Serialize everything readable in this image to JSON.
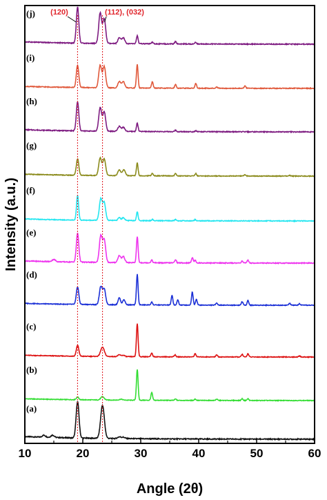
{
  "chart_data": {
    "type": "line",
    "xlabel": "Angle (2θ)",
    "ylabel": "Intensity (a.u.)",
    "xlim": [
      10,
      60
    ],
    "xticks": [
      10,
      20,
      30,
      40,
      50,
      60
    ],
    "y_tick_labels": "none",
    "reference_lines": [
      {
        "x": 19.1,
        "label": "(120)",
        "color": "#e0242b",
        "style": "dotted"
      },
      {
        "x": 23.4,
        "label": "(112), (032)",
        "color": "#e0242b",
        "style": "dotted"
      }
    ],
    "peak_positions": [
      19.1,
      23.4
    ],
    "series": [
      {
        "name": "(a)",
        "color": "#111111",
        "baseline": 0.0,
        "peaks": [
          [
            13.3,
            0.06,
            0.4
          ],
          [
            14.8,
            0.07,
            0.4
          ],
          [
            19.1,
            1.1,
            0.35
          ],
          [
            23.4,
            1.0,
            0.45
          ],
          [
            26.3,
            0.05,
            0.4
          ],
          [
            27.0,
            0.04,
            0.4
          ]
        ]
      },
      {
        "name": "(b)",
        "color": "#33dd33",
        "baseline": 0.0,
        "peaks": [
          [
            19.1,
            0.12,
            0.3
          ],
          [
            23.4,
            0.15,
            0.4
          ],
          [
            26.6,
            0.04,
            0.4
          ],
          [
            29.4,
            1.4,
            0.2
          ],
          [
            31.9,
            0.35,
            0.2
          ],
          [
            36.0,
            0.06,
            0.2
          ],
          [
            39.4,
            0.06,
            0.2
          ],
          [
            43.1,
            0.06,
            0.2
          ],
          [
            47.5,
            0.08,
            0.2
          ],
          [
            48.5,
            0.08,
            0.2
          ]
        ]
      },
      {
        "name": "(c)",
        "color": "#dd1111",
        "baseline": 0.0,
        "peaks": [
          [
            19.1,
            0.5,
            0.3
          ],
          [
            23.4,
            0.42,
            0.45
          ],
          [
            26.3,
            0.08,
            0.35
          ],
          [
            27.0,
            0.06,
            0.35
          ],
          [
            29.4,
            1.5,
            0.2
          ],
          [
            31.9,
            0.16,
            0.2
          ],
          [
            35.9,
            0.09,
            0.2
          ],
          [
            39.4,
            0.15,
            0.2
          ],
          [
            43.1,
            0.1,
            0.2
          ],
          [
            47.5,
            0.12,
            0.2
          ],
          [
            48.5,
            0.15,
            0.2
          ],
          [
            57.4,
            0.05,
            0.2
          ]
        ]
      },
      {
        "name": "(d)",
        "color": "#1a2fd6",
        "baseline": 0.0,
        "peaks": [
          [
            19.1,
            0.75,
            0.3
          ],
          [
            23.1,
            0.75,
            0.35
          ],
          [
            23.7,
            0.65,
            0.35
          ],
          [
            26.3,
            0.3,
            0.3
          ],
          [
            27.1,
            0.22,
            0.3
          ],
          [
            29.4,
            1.3,
            0.2
          ],
          [
            31.9,
            0.12,
            0.2
          ],
          [
            35.4,
            0.4,
            0.2
          ],
          [
            36.4,
            0.22,
            0.2
          ],
          [
            38.9,
            0.55,
            0.2
          ],
          [
            39.6,
            0.25,
            0.2
          ],
          [
            43.1,
            0.1,
            0.2
          ],
          [
            47.5,
            0.15,
            0.2
          ],
          [
            48.5,
            0.2,
            0.2
          ],
          [
            55.7,
            0.08,
            0.2
          ],
          [
            57.4,
            0.06,
            0.2
          ]
        ]
      },
      {
        "name": "(e)",
        "color": "#ee33ee",
        "baseline": 0.0,
        "peaks": [
          [
            15.0,
            0.08,
            0.4
          ],
          [
            19.1,
            1.05,
            0.3
          ],
          [
            23.1,
            0.95,
            0.35
          ],
          [
            23.7,
            0.8,
            0.35
          ],
          [
            26.3,
            0.25,
            0.35
          ],
          [
            27.0,
            0.22,
            0.35
          ],
          [
            29.4,
            0.95,
            0.2
          ],
          [
            31.9,
            0.1,
            0.2
          ],
          [
            36.0,
            0.12,
            0.2
          ],
          [
            38.9,
            0.2,
            0.2
          ],
          [
            39.4,
            0.1,
            0.2
          ],
          [
            47.5,
            0.08,
            0.2
          ],
          [
            48.5,
            0.1,
            0.2
          ]
        ]
      },
      {
        "name": "(f)",
        "color": "#22e6f0",
        "baseline": 0.0,
        "peaks": [
          [
            19.1,
            1.0,
            0.25
          ],
          [
            23.1,
            0.85,
            0.35
          ],
          [
            23.7,
            0.7,
            0.35
          ],
          [
            26.3,
            0.12,
            0.3
          ],
          [
            27.0,
            0.12,
            0.3
          ],
          [
            29.4,
            0.35,
            0.2
          ],
          [
            32.0,
            0.05,
            0.2
          ],
          [
            36.0,
            0.05,
            0.2
          ],
          [
            39.4,
            0.05,
            0.2
          ]
        ]
      },
      {
        "name": "(g)",
        "color": "#8a8a1a",
        "baseline": 0.0,
        "peaks": [
          [
            19.1,
            0.7,
            0.3
          ],
          [
            23.0,
            0.75,
            0.35
          ],
          [
            23.7,
            0.7,
            0.35
          ],
          [
            26.3,
            0.25,
            0.35
          ],
          [
            27.1,
            0.25,
            0.35
          ],
          [
            29.4,
            0.55,
            0.2
          ],
          [
            32.0,
            0.1,
            0.2
          ],
          [
            36.0,
            0.1,
            0.2
          ],
          [
            39.5,
            0.1,
            0.2
          ],
          [
            48.0,
            0.06,
            0.2
          ],
          [
            55.7,
            0.03,
            0.2
          ]
        ]
      },
      {
        "name": "(h)",
        "color": "#7d1a80",
        "baseline": 0.0,
        "peaks": [
          [
            19.1,
            1.05,
            0.3
          ],
          [
            23.0,
            0.85,
            0.35
          ],
          [
            23.7,
            0.7,
            0.35
          ],
          [
            26.3,
            0.18,
            0.35
          ],
          [
            27.0,
            0.15,
            0.35
          ],
          [
            29.4,
            0.3,
            0.2
          ],
          [
            36.0,
            0.05,
            0.2
          ],
          [
            39.5,
            0.04,
            0.2
          ]
        ]
      },
      {
        "name": "(i)",
        "color": "#e0583a",
        "baseline": 0.0,
        "peaks": [
          [
            19.1,
            0.9,
            0.3
          ],
          [
            23.0,
            0.9,
            0.35
          ],
          [
            23.7,
            0.85,
            0.35
          ],
          [
            26.3,
            0.25,
            0.35
          ],
          [
            27.0,
            0.25,
            0.35
          ],
          [
            29.4,
            0.95,
            0.2
          ],
          [
            32.0,
            0.25,
            0.2
          ],
          [
            36.0,
            0.15,
            0.2
          ],
          [
            39.5,
            0.2,
            0.2
          ],
          [
            43.1,
            0.05,
            0.2
          ],
          [
            48.0,
            0.1,
            0.2
          ]
        ]
      },
      {
        "name": "(j)",
        "color": "#7d1a80",
        "baseline": 0.0,
        "peaks": [
          [
            19.1,
            1.25,
            0.3
          ],
          [
            23.0,
            1.05,
            0.35
          ],
          [
            23.7,
            0.85,
            0.35
          ],
          [
            26.3,
            0.2,
            0.35
          ],
          [
            27.0,
            0.2,
            0.35
          ],
          [
            29.4,
            0.28,
            0.2
          ],
          [
            32.0,
            0.05,
            0.2
          ],
          [
            36.0,
            0.08,
            0.2
          ],
          [
            39.5,
            0.06,
            0.2
          ]
        ]
      }
    ],
    "grid": false,
    "legend": "none"
  }
}
